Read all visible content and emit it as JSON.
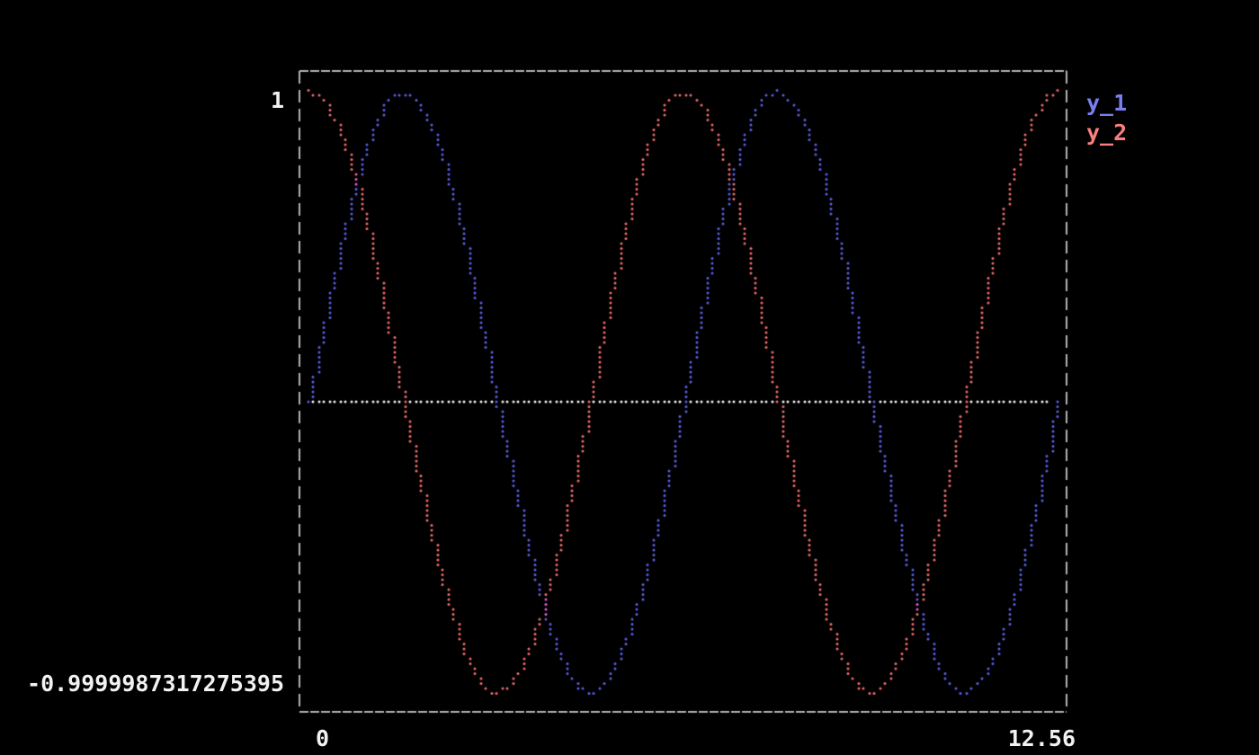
{
  "figure": {
    "background": "#000000",
    "border_color": "#b3b3b3",
    "text_color": "#f2f2f2"
  },
  "chart_data": {
    "type": "scatter",
    "style": "terminal-braille-dot-plot",
    "title": "",
    "xlabel": "",
    "ylabel": "",
    "grid": false,
    "legend_position": "right-of-plot-top",
    "x": {
      "min": 0,
      "max": 12.56,
      "tick_labels": [
        "0",
        "12.56"
      ]
    },
    "y": {
      "min": -0.9999987317275395,
      "max": 1,
      "tick_labels": [
        "1",
        "-0.9999987317275395"
      ]
    },
    "series": [
      {
        "name": "y_1",
        "function": "sin",
        "amplitude": 1,
        "phase": 0,
        "color": "#5b61e6",
        "legend_color": "#7a7ff0"
      },
      {
        "name": "y_2",
        "function": "cos",
        "amplitude": 1,
        "phase": 0,
        "color": "#f26c6c",
        "legend_color": "#f97e7e"
      }
    ],
    "overlap_color": "#ea5cd2",
    "zero_line": {
      "shown": true,
      "y": 0,
      "color": "#f5f5f5",
      "style": "dotted"
    }
  }
}
